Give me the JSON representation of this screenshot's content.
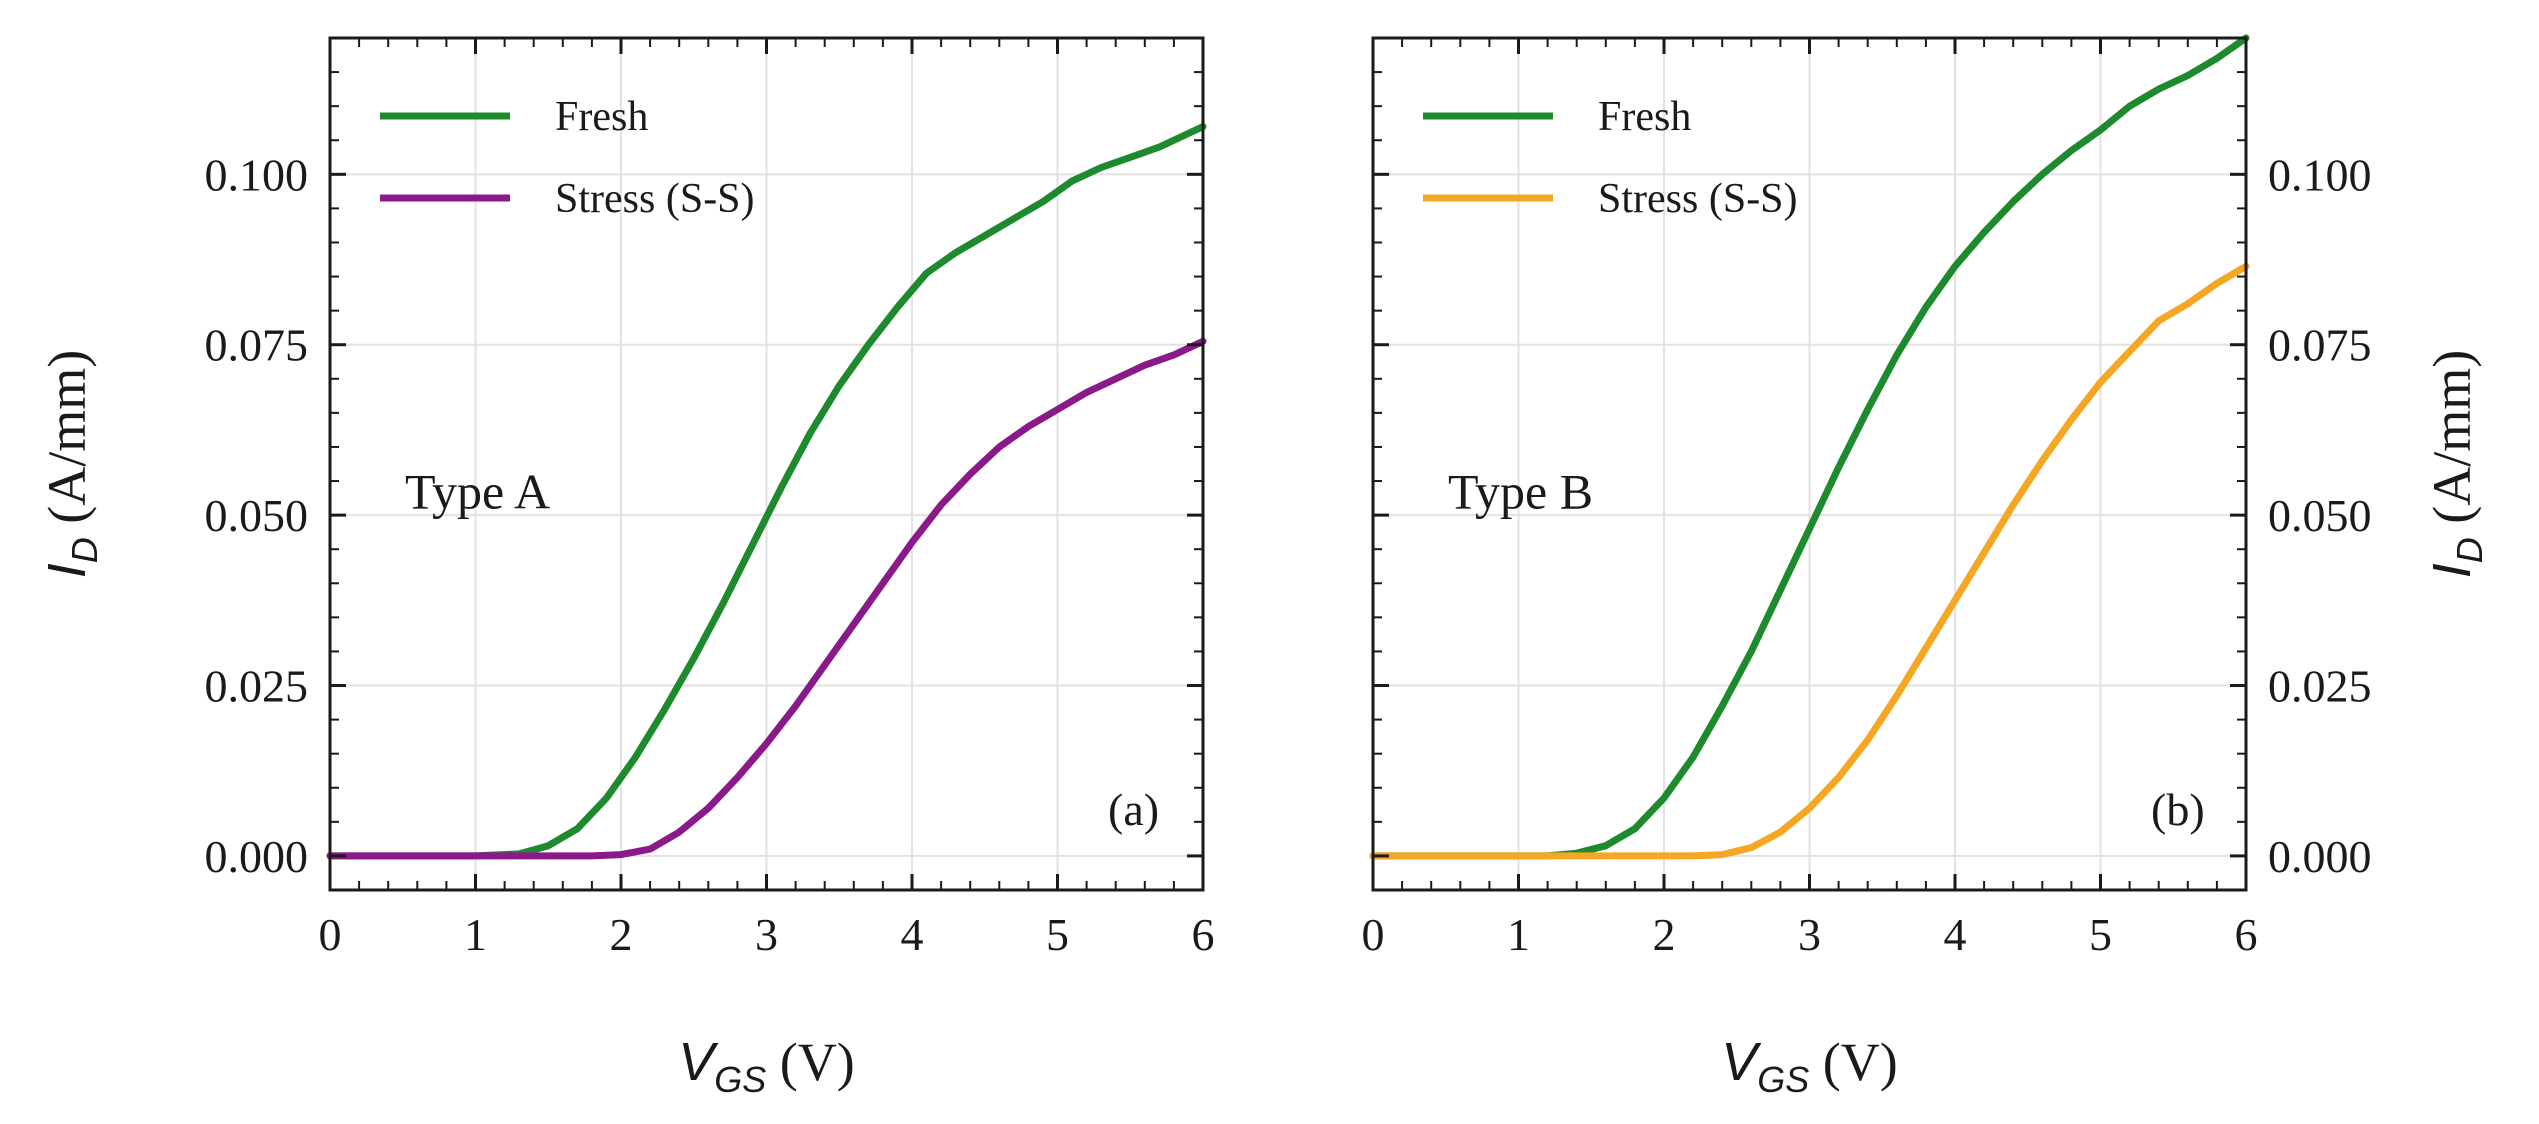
{
  "chart_data": [
    {
      "id": "a",
      "type": "line",
      "panel_label": "(a)",
      "annotation": "Type A",
      "xlabel": {
        "symbol": "V",
        "sub": "GS",
        "unit": " (V)"
      },
      "ylabel": {
        "symbol": "I",
        "sub": "D",
        "unit": " (A/mm)"
      },
      "y_axis_side": "left",
      "xlim": [
        0,
        6
      ],
      "ylim": [
        -0.005,
        0.12
      ],
      "xticks": [
        "0",
        "1",
        "2",
        "3",
        "4",
        "5",
        "6"
      ],
      "yticks": [
        "0.000",
        "0.025",
        "0.050",
        "0.075",
        "0.100"
      ],
      "grid": true,
      "legend_position": "top-left",
      "series": [
        {
          "name": "Fresh",
          "color": "#1e8a2e",
          "x": [
            0,
            1.0,
            1.3,
            1.5,
            1.7,
            1.9,
            2.1,
            2.3,
            2.5,
            2.7,
            2.9,
            3.1,
            3.3,
            3.5,
            3.7,
            3.9,
            4.1,
            4.3,
            4.5,
            4.7,
            4.9,
            5.1,
            5.3,
            5.5,
            5.7,
            6.0
          ],
          "y": [
            0,
            0,
            0.0003,
            0.0015,
            0.004,
            0.0085,
            0.0145,
            0.0215,
            0.029,
            0.037,
            0.0455,
            0.054,
            0.062,
            0.069,
            0.075,
            0.0805,
            0.0855,
            0.0885,
            0.091,
            0.0935,
            0.096,
            0.099,
            0.101,
            0.1025,
            0.104,
            0.107
          ]
        },
        {
          "name": "Stress (S-S)",
          "color": "#8a1a8a",
          "x": [
            0,
            1.8,
            2.0,
            2.2,
            2.4,
            2.6,
            2.8,
            3.0,
            3.2,
            3.4,
            3.6,
            3.8,
            4.0,
            4.2,
            4.4,
            4.6,
            4.8,
            5.0,
            5.2,
            5.4,
            5.6,
            5.8,
            6.0
          ],
          "y": [
            0,
            0,
            0.0002,
            0.001,
            0.0035,
            0.007,
            0.0115,
            0.0165,
            0.022,
            0.028,
            0.034,
            0.04,
            0.046,
            0.0515,
            0.056,
            0.06,
            0.063,
            0.0655,
            0.068,
            0.07,
            0.072,
            0.0735,
            0.0755
          ]
        }
      ]
    },
    {
      "id": "b",
      "type": "line",
      "panel_label": "(b)",
      "annotation": "Type B",
      "xlabel": {
        "symbol": "V",
        "sub": "GS",
        "unit": " (V)"
      },
      "ylabel": {
        "symbol": "I",
        "sub": "D",
        "unit": " (A/mm)"
      },
      "y_axis_side": "right",
      "xlim": [
        0,
        6
      ],
      "ylim": [
        -0.005,
        0.12
      ],
      "xticks": [
        "0",
        "1",
        "2",
        "3",
        "4",
        "5",
        "6"
      ],
      "yticks": [
        "0.000",
        "0.025",
        "0.050",
        "0.075",
        "0.100"
      ],
      "grid": true,
      "legend_position": "top-left",
      "series": [
        {
          "name": "Fresh",
          "color": "#1e8a2e",
          "x": [
            0,
            1.2,
            1.4,
            1.6,
            1.8,
            2.0,
            2.2,
            2.4,
            2.6,
            2.8,
            3.0,
            3.2,
            3.4,
            3.6,
            3.8,
            4.0,
            4.2,
            4.4,
            4.6,
            4.8,
            5.0,
            5.2,
            5.4,
            5.6,
            5.8,
            6.0
          ],
          "y": [
            0,
            0,
            0.0004,
            0.0015,
            0.004,
            0.0085,
            0.0145,
            0.022,
            0.03,
            0.039,
            0.048,
            0.057,
            0.0655,
            0.0735,
            0.0805,
            0.0865,
            0.0915,
            0.096,
            0.1,
            0.1035,
            0.1065,
            0.11,
            0.1125,
            0.1145,
            0.117,
            0.12
          ]
        },
        {
          "name": "Stress (S-S)",
          "color": "#f5a623",
          "x": [
            0,
            2.2,
            2.4,
            2.6,
            2.8,
            3.0,
            3.2,
            3.4,
            3.6,
            3.8,
            4.0,
            4.2,
            4.4,
            4.6,
            4.8,
            5.0,
            5.2,
            5.4,
            5.6,
            5.8,
            6.0
          ],
          "y": [
            0,
            0,
            0.0002,
            0.0012,
            0.0035,
            0.007,
            0.0115,
            0.017,
            0.0235,
            0.0305,
            0.0375,
            0.0445,
            0.0515,
            0.058,
            0.064,
            0.0695,
            0.074,
            0.0785,
            0.081,
            0.084,
            0.0865
          ]
        }
      ]
    }
  ]
}
